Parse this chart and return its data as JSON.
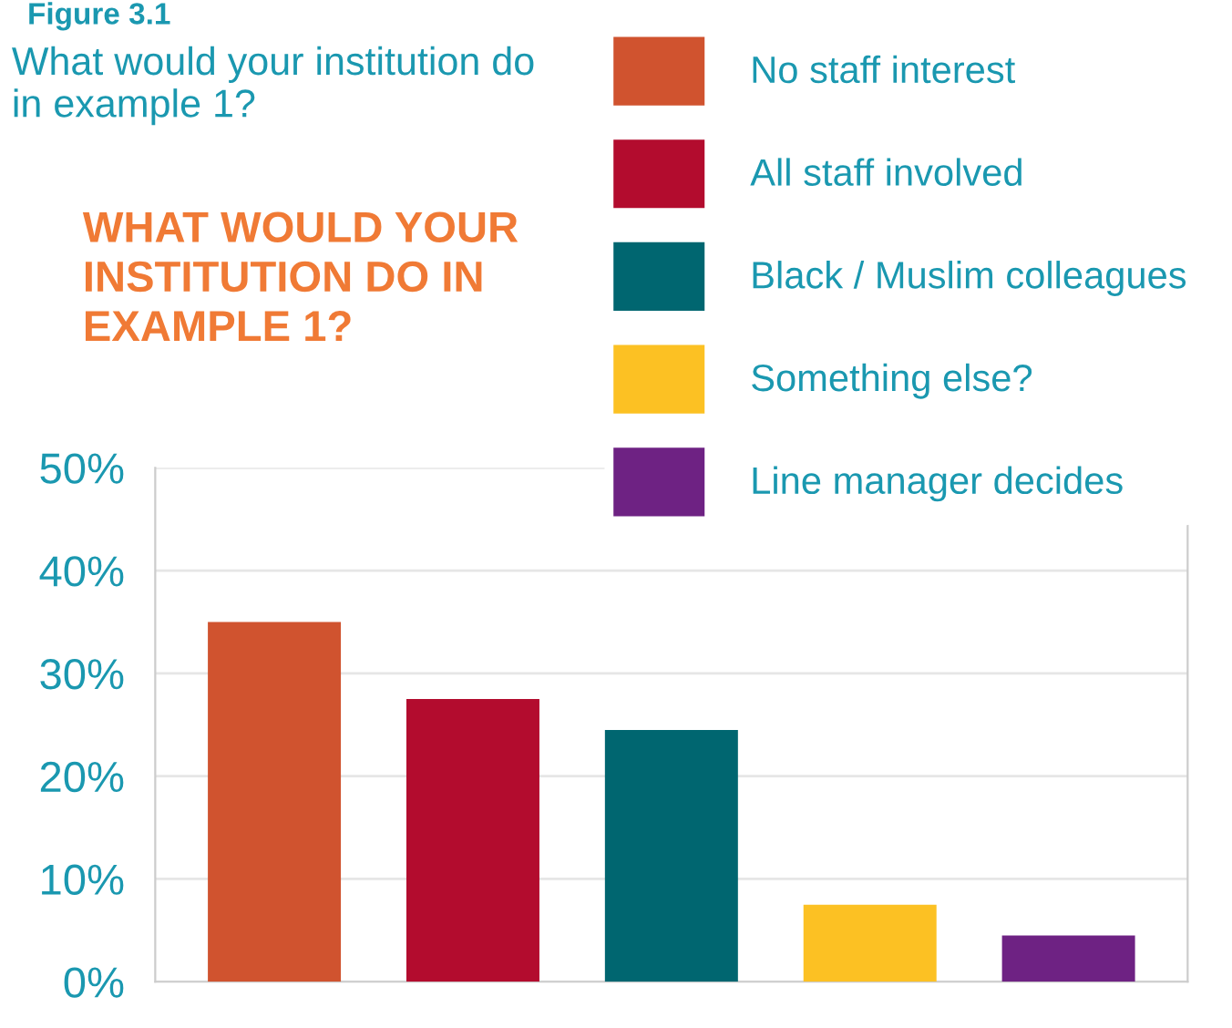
{
  "chart_data": {
    "type": "bar",
    "title": "What would your institution do in example 1?",
    "subtitle": "WHAT WOULD YOUR INSTITUTION DO IN EXAMPLE 1?",
    "annotations": [
      "Figure 3.1"
    ],
    "categories": [
      null,
      null,
      null,
      null,
      null
    ],
    "series": [
      {
        "name": "No staff interest",
        "color": "#d0532f",
        "values": [
          35,
          null,
          null,
          null,
          null
        ]
      },
      {
        "name": "All staff involved",
        "color": "#b30c2e",
        "values": [
          null,
          27.5,
          null,
          null,
          null
        ]
      },
      {
        "name": "Black / Muslim colleagues",
        "color": "#006670",
        "values": [
          null,
          null,
          24.5,
          null,
          null
        ]
      },
      {
        "name": "Something else?",
        "color": "#fcc123",
        "values": [
          null,
          null,
          null,
          7.5,
          null
        ]
      },
      {
        "name": "Line manager decides",
        "color": "#6e2283",
        "values": [
          null,
          null,
          null,
          null,
          4.5
        ]
      }
    ],
    "ylim": [
      0,
      50
    ],
    "yticks": [
      {
        "value": 0,
        "label": "0%"
      },
      {
        "value": 10,
        "label": "10%"
      },
      {
        "value": 20,
        "label": "20%"
      },
      {
        "value": 30,
        "label": "30%"
      },
      {
        "value": 40,
        "label": "40%"
      },
      {
        "value": 50,
        "label": "50%"
      }
    ],
    "grid": "y",
    "legend": "top right"
  }
}
